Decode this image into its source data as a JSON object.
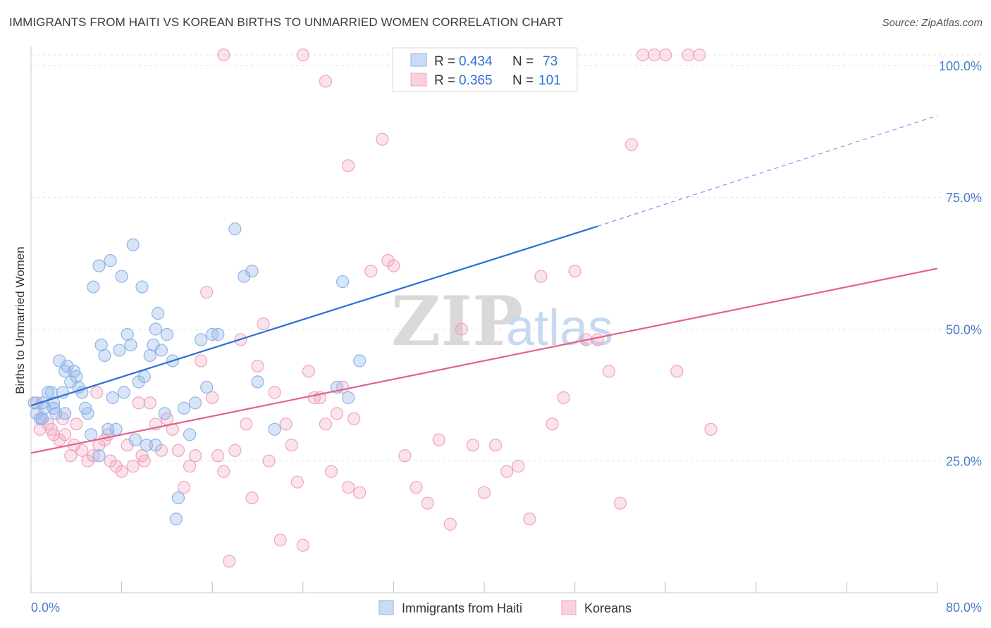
{
  "title": "IMMIGRANTS FROM HAITI VS KOREAN BIRTHS TO UNMARRIED WOMEN CORRELATION CHART",
  "source": "Source: ZipAtlas.com",
  "watermark": {
    "zip": "ZIP",
    "atlas": "atlas"
  },
  "colors": {
    "blue": "#8fb4e8",
    "blue_line": "#2a6fd6",
    "pink": "#f0a3bd",
    "pink_line": "#e0628f",
    "tick": "#4a7cc9"
  },
  "legend": {
    "r_label": "R =",
    "n_label": "N =",
    "rows": [
      {
        "r": "0.434",
        "n": "73"
      },
      {
        "r": "0.365",
        "n": "101"
      }
    ]
  },
  "chart_data": {
    "type": "scatter",
    "title": "IMMIGRANTS FROM HAITI VS KOREAN BIRTHS TO UNMARRIED WOMEN CORRELATION CHART",
    "xlabel": "",
    "ylabel": "Births to Unmarried Women",
    "xlim": [
      0,
      80
    ],
    "ylim": [
      0,
      102
    ],
    "x_tick_labels": {
      "min": "0.0%",
      "max": "80.0%"
    },
    "y_ticks": [
      {
        "value": 25,
        "label": "25.0%"
      },
      {
        "value": 50,
        "label": "50.0%"
      },
      {
        "value": 75,
        "label": "75.0%"
      },
      {
        "value": 100,
        "label": "100.0%"
      }
    ],
    "grid": true,
    "legend_position": "top-center",
    "series": [
      {
        "name": "Immigrants from Haiti",
        "color": "#8fb4e8",
        "trend": {
          "x0": 0,
          "y0": 35.5,
          "x1": 50,
          "y1": 69.5,
          "dashed_to_x": 80,
          "dashed_to_y": 90.5
        },
        "points": [
          [
            0.5,
            34
          ],
          [
            0.8,
            33
          ],
          [
            1.0,
            36
          ],
          [
            1.2,
            35
          ],
          [
            1.5,
            38
          ],
          [
            1.8,
            38
          ],
          [
            2.0,
            36
          ],
          [
            2.2,
            34
          ],
          [
            2.5,
            44
          ],
          [
            2.8,
            38
          ],
          [
            3.0,
            42
          ],
          [
            3.2,
            43
          ],
          [
            3.5,
            40
          ],
          [
            3.8,
            42
          ],
          [
            4.0,
            41
          ],
          [
            4.2,
            39
          ],
          [
            4.5,
            38
          ],
          [
            4.8,
            35
          ],
          [
            5.0,
            34
          ],
          [
            5.3,
            30
          ],
          [
            5.5,
            58
          ],
          [
            6.0,
            62
          ],
          [
            6.2,
            47
          ],
          [
            6.5,
            45
          ],
          [
            6.8,
            31
          ],
          [
            7.0,
            63
          ],
          [
            7.2,
            37
          ],
          [
            7.5,
            31
          ],
          [
            7.8,
            46
          ],
          [
            8.0,
            60
          ],
          [
            8.2,
            38
          ],
          [
            8.5,
            49
          ],
          [
            8.8,
            47
          ],
          [
            9.0,
            66
          ],
          [
            9.2,
            29
          ],
          [
            9.5,
            40
          ],
          [
            9.8,
            58
          ],
          [
            10.0,
            41
          ],
          [
            10.2,
            28
          ],
          [
            10.5,
            45
          ],
          [
            10.8,
            47
          ],
          [
            11.0,
            50
          ],
          [
            11.2,
            53
          ],
          [
            11.5,
            46
          ],
          [
            11.8,
            34
          ],
          [
            12.0,
            49
          ],
          [
            12.5,
            44
          ],
          [
            13.0,
            18
          ],
          [
            13.5,
            35
          ],
          [
            14.0,
            30
          ],
          [
            14.5,
            36
          ],
          [
            15.0,
            48
          ],
          [
            15.5,
            39
          ],
          [
            16.0,
            49
          ],
          [
            16.5,
            49
          ],
          [
            18.0,
            69
          ],
          [
            18.8,
            60
          ],
          [
            19.5,
            61
          ],
          [
            20.0,
            40
          ],
          [
            21.5,
            31
          ],
          [
            27.0,
            39
          ],
          [
            27.5,
            59
          ],
          [
            28.0,
            37
          ],
          [
            29.0,
            44
          ],
          [
            2.0,
            35
          ],
          [
            1.0,
            33
          ],
          [
            6.0,
            26
          ],
          [
            11.0,
            28
          ],
          [
            12.8,
            14
          ],
          [
            0.3,
            36
          ],
          [
            44.0,
            102
          ],
          [
            33.5,
            102
          ],
          [
            3.0,
            34
          ]
        ]
      },
      {
        "name": "Koreans",
        "color": "#f0a3bd",
        "trend": {
          "x0": 0,
          "y0": 26.5,
          "x1": 80,
          "y1": 61.5
        },
        "points": [
          [
            0.5,
            36
          ],
          [
            1.0,
            33
          ],
          [
            1.5,
            32
          ],
          [
            2.0,
            30
          ],
          [
            2.5,
            29
          ],
          [
            3.0,
            30
          ],
          [
            3.5,
            26
          ],
          [
            4.0,
            32
          ],
          [
            4.5,
            27
          ],
          [
            5.0,
            25
          ],
          [
            5.5,
            26
          ],
          [
            6.0,
            28
          ],
          [
            6.5,
            29
          ],
          [
            7.0,
            25
          ],
          [
            7.5,
            24
          ],
          [
            8.0,
            23
          ],
          [
            8.5,
            28
          ],
          [
            9.0,
            24
          ],
          [
            9.5,
            36
          ],
          [
            10.0,
            25
          ],
          [
            10.5,
            36
          ],
          [
            11.0,
            32
          ],
          [
            11.5,
            27
          ],
          [
            12.0,
            33
          ],
          [
            12.5,
            31
          ],
          [
            13.0,
            27
          ],
          [
            13.5,
            20
          ],
          [
            14.0,
            24
          ],
          [
            14.5,
            26
          ],
          [
            15.0,
            44
          ],
          [
            15.5,
            57
          ],
          [
            16.0,
            37
          ],
          [
            16.5,
            26
          ],
          [
            17.0,
            23
          ],
          [
            17.5,
            6
          ],
          [
            18.0,
            27
          ],
          [
            18.5,
            48
          ],
          [
            19.0,
            32
          ],
          [
            19.5,
            18
          ],
          [
            20.0,
            43
          ],
          [
            20.5,
            51
          ],
          [
            21.0,
            25
          ],
          [
            21.5,
            38
          ],
          [
            22.0,
            10
          ],
          [
            22.5,
            32
          ],
          [
            23.0,
            28
          ],
          [
            23.5,
            21
          ],
          [
            24.0,
            9
          ],
          [
            24.5,
            42
          ],
          [
            25.0,
            37
          ],
          [
            25.5,
            37
          ],
          [
            26.0,
            32
          ],
          [
            26.5,
            23
          ],
          [
            27.0,
            34
          ],
          [
            27.5,
            39
          ],
          [
            28.0,
            20
          ],
          [
            28.5,
            33
          ],
          [
            29.0,
            19
          ],
          [
            30.0,
            61
          ],
          [
            31.0,
            86
          ],
          [
            31.5,
            63
          ],
          [
            32.0,
            62
          ],
          [
            33.0,
            26
          ],
          [
            34.0,
            20
          ],
          [
            35.0,
            17
          ],
          [
            36.0,
            29
          ],
          [
            37.0,
            13
          ],
          [
            38.0,
            50
          ],
          [
            39.0,
            28
          ],
          [
            40.0,
            19
          ],
          [
            41.0,
            28
          ],
          [
            42.0,
            23
          ],
          [
            43.0,
            24
          ],
          [
            44.0,
            14
          ],
          [
            45.0,
            60
          ],
          [
            46.0,
            32
          ],
          [
            47.0,
            37
          ],
          [
            48.0,
            61
          ],
          [
            49.0,
            48
          ],
          [
            50.0,
            48
          ],
          [
            51.0,
            42
          ],
          [
            52.0,
            17
          ],
          [
            53.0,
            85
          ],
          [
            54.0,
            102
          ],
          [
            55.0,
            102
          ],
          [
            56.0,
            102
          ],
          [
            57.0,
            42
          ],
          [
            58.0,
            102
          ],
          [
            59.0,
            102
          ],
          [
            60.0,
            31
          ],
          [
            26.0,
            97
          ],
          [
            28.0,
            81
          ],
          [
            17.0,
            102
          ],
          [
            24.0,
            102
          ],
          [
            5.8,
            38
          ],
          [
            1.8,
            31
          ],
          [
            2.8,
            33
          ],
          [
            0.8,
            31
          ],
          [
            3.8,
            28
          ],
          [
            6.8,
            30
          ],
          [
            9.8,
            26
          ]
        ]
      }
    ]
  },
  "bottom_legend": [
    {
      "label": "Immigrants from Haiti",
      "color": "#8fb4e8"
    },
    {
      "label": "Koreans",
      "color": "#f0a3bd"
    }
  ]
}
